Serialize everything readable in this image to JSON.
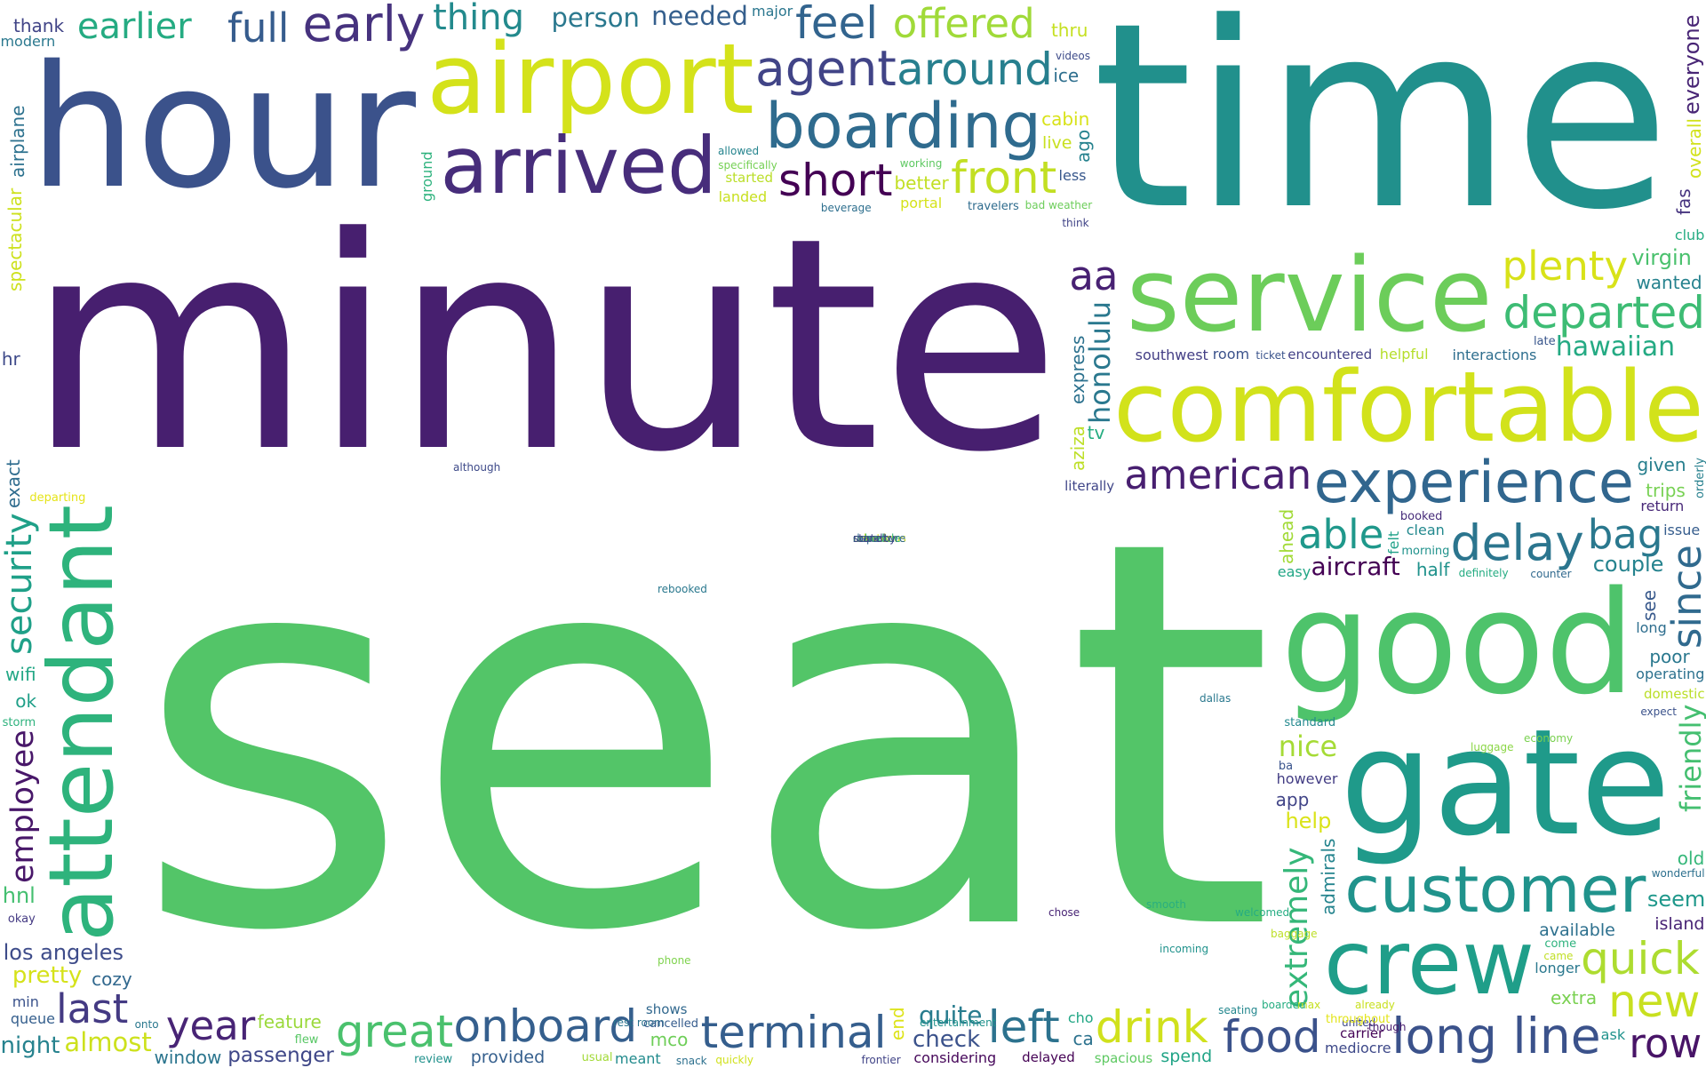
{
  "words": [
    {
      "text": "seat",
      "color": "#53c568"
    },
    {
      "text": "minute",
      "color": "#471f6f"
    },
    {
      "text": "time",
      "color": "#21908c"
    },
    {
      "text": "hour",
      "color": "#3b528b"
    },
    {
      "text": "airport",
      "color": "#d4e21a"
    },
    {
      "text": "comfortable",
      "color": "#d2e21b"
    },
    {
      "text": "service",
      "color": "#6ccd5a"
    },
    {
      "text": "good",
      "color": "#4ec36b"
    },
    {
      "text": "gate",
      "color": "#1f9a8a"
    },
    {
      "text": "arrived",
      "color": "#472d7b"
    },
    {
      "text": "customer",
      "color": "#20938c"
    },
    {
      "text": "crew",
      "color": "#1f9e89"
    },
    {
      "text": "attendant",
      "color": "#2eb37c"
    },
    {
      "text": "boarding",
      "color": "#2f6b8e"
    },
    {
      "text": "experience",
      "color": "#31668e"
    },
    {
      "text": "agent",
      "color": "#414487"
    },
    {
      "text": "early",
      "color": "#46327e"
    },
    {
      "text": "feel",
      "color": "#32648e"
    },
    {
      "text": "short",
      "color": "#440154"
    },
    {
      "text": "front",
      "color": "#c2df23"
    },
    {
      "text": "around",
      "color": "#277f8e"
    },
    {
      "text": "plenty",
      "color": "#d8e219"
    },
    {
      "text": "departed",
      "color": "#3dbc74"
    },
    {
      "text": "delay",
      "color": "#2b758e"
    },
    {
      "text": "earlier",
      "color": "#25ab82"
    },
    {
      "text": "offered",
      "color": "#a0da39"
    },
    {
      "text": "onboard",
      "color": "#355f8d"
    },
    {
      "text": "terminal",
      "color": "#355e8d"
    },
    {
      "text": "long line",
      "color": "#3b528b"
    },
    {
      "text": "able",
      "color": "#1f988b"
    },
    {
      "text": "since",
      "color": "#306a8e"
    },
    {
      "text": "full",
      "color": "#365c8d"
    },
    {
      "text": "last",
      "color": "#443a83"
    },
    {
      "text": "year",
      "color": "#482475"
    },
    {
      "text": "aa",
      "color": "#482173"
    },
    {
      "text": "left",
      "color": "#2c728e"
    },
    {
      "text": "quick",
      "color": "#addc30"
    },
    {
      "text": "drink",
      "color": "#d0e11c"
    },
    {
      "text": "new",
      "color": "#c8e020"
    },
    {
      "text": "great",
      "color": "#4ac16d"
    },
    {
      "text": "bag",
      "color": "#2a788e"
    },
    {
      "text": "food",
      "color": "#3b528b"
    },
    {
      "text": "security",
      "color": "#1fa088"
    },
    {
      "text": "almost",
      "color": "#cde11d"
    },
    {
      "text": "american",
      "color": "#481f70"
    },
    {
      "text": "person",
      "color": "#2a788e"
    },
    {
      "text": "row",
      "color": "#481467"
    },
    {
      "text": "needed",
      "color": "#355f8d"
    },
    {
      "text": "hawaiian",
      "color": "#24aa83"
    },
    {
      "text": "luggage",
      "color": "#8bd646"
    },
    {
      "text": "aircraft",
      "color": "#440154"
    },
    {
      "text": "los angeles",
      "color": "#3e4c8a"
    },
    {
      "text": "pretty",
      "color": "#d5e21a"
    },
    {
      "text": "nice",
      "color": "#a5db36"
    },
    {
      "text": "employee",
      "color": "#481769"
    },
    {
      "text": "honolulu",
      "color": "#2a788e"
    },
    {
      "text": "extremely",
      "color": "#35b779"
    },
    {
      "text": "friendly",
      "color": "#44bf70"
    },
    {
      "text": "quite",
      "color": "#287c8e"
    },
    {
      "text": "thing",
      "color": "#238a8d"
    },
    {
      "text": "check",
      "color": "#3b528b"
    },
    {
      "text": "night",
      "color": "#26828e"
    },
    {
      "text": "passenger",
      "color": "#3f4788"
    },
    {
      "text": "rest room",
      "color": "#2b748e"
    },
    {
      "text": "entertainment",
      "color": "#20928c"
    },
    {
      "text": "united",
      "color": "#3e4989"
    },
    {
      "text": "bad weather",
      "color": "#6ccd5a"
    },
    {
      "text": "interactions",
      "color": "#2e6e8e"
    },
    {
      "text": "thank",
      "color": "#414487"
    },
    {
      "text": "landed",
      "color": "#c8e020"
    },
    {
      "text": "modern",
      "color": "#2a788e"
    },
    {
      "text": "provided",
      "color": "#355f8d"
    },
    {
      "text": "encountered",
      "color": "#424086"
    },
    {
      "text": "southwest",
      "color": "#433e85"
    },
    {
      "text": "cabin",
      "color": "#d8e219"
    },
    {
      "text": "throughout",
      "color": "#e2e418"
    },
    {
      "text": "available",
      "color": "#2d708e"
    },
    {
      "text": "however",
      "color": "#433d84"
    },
    {
      "text": "specifically",
      "color": "#75d054"
    },
    {
      "text": "delayed",
      "color": "#440154"
    },
    {
      "text": "started",
      "color": "#bade28"
    },
    {
      "text": "airplane",
      "color": "#2c718e"
    },
    {
      "text": "considering",
      "color": "#46075a"
    },
    {
      "text": "feature",
      "color": "#9bd93c"
    },
    {
      "text": "ago",
      "color": "#26828e"
    },
    {
      "text": "given",
      "color": "#277f8e"
    },
    {
      "text": "virgin",
      "color": "#4ac16d"
    },
    {
      "text": "wanted",
      "color": "#26828e"
    },
    {
      "text": "mco",
      "color": "#6ece58"
    },
    {
      "text": "departing",
      "color": "#e5e419"
    },
    {
      "text": "better",
      "color": "#c2df23"
    },
    {
      "text": "express",
      "color": "#2c718e"
    },
    {
      "text": "couple",
      "color": "#25838e"
    },
    {
      "text": "definitely",
      "color": "#25ac82"
    },
    {
      "text": "spacious",
      "color": "#5ec962"
    },
    {
      "text": "mediocre",
      "color": "#3e4989"
    },
    {
      "text": "aziza",
      "color": "#bddf26"
    },
    {
      "text": "trips",
      "color": "#77d153"
    },
    {
      "text": "return",
      "color": "#482878"
    },
    {
      "text": "window",
      "color": "#2b758e"
    },
    {
      "text": "meant",
      "color": "#228b8d"
    },
    {
      "text": "poor",
      "color": "#2a788e"
    },
    {
      "text": "thru",
      "color": "#c5e021"
    },
    {
      "text": "allowed",
      "color": "#25848e"
    },
    {
      "text": "portal",
      "color": "#d5e21a"
    },
    {
      "text": "island",
      "color": "#482475"
    },
    {
      "text": "hr",
      "color": "#3e4a89"
    },
    {
      "text": "cozy",
      "color": "#31688e"
    },
    {
      "text": "overall",
      "color": "#d2e21b"
    },
    {
      "text": "major",
      "color": "#2a768e"
    },
    {
      "text": "operating",
      "color": "#2c718e"
    },
    {
      "text": "half",
      "color": "#20928c"
    },
    {
      "text": "queue",
      "color": "#355f8d"
    },
    {
      "text": "extra",
      "color": "#7ad151"
    },
    {
      "text": "clean",
      "color": "#23898e"
    },
    {
      "text": "ahead",
      "color": "#a2da37"
    },
    {
      "text": "everyone",
      "color": "#482575"
    },
    {
      "text": "tv",
      "color": "#26ad81"
    },
    {
      "text": "help",
      "color": "#dae319"
    },
    {
      "text": "spend",
      "color": "#20a486"
    },
    {
      "text": "wonderful",
      "color": "#2d708e"
    },
    {
      "text": "ok",
      "color": "#1f9f88"
    },
    {
      "text": "domestic",
      "color": "#bade28"
    },
    {
      "text": "booked",
      "color": "#472c7a"
    },
    {
      "text": "admirals",
      "color": "#25848e"
    },
    {
      "text": "spectacular",
      "color": "#cde11d"
    },
    {
      "text": "literally",
      "color": "#404688"
    },
    {
      "text": "helpful",
      "color": "#b5de2b"
    },
    {
      "text": "although",
      "color": "#3e4a89"
    },
    {
      "text": "exact",
      "color": "#2f6c8e"
    },
    {
      "text": "cancelled",
      "color": "#365c8d"
    },
    {
      "text": "travelers",
      "color": "#2f6c8e"
    },
    {
      "text": "counter",
      "color": "#30698e"
    },
    {
      "text": "seating",
      "color": "#24878e"
    },
    {
      "text": "seem",
      "color": "#1f988b"
    },
    {
      "text": "app",
      "color": "#414487"
    },
    {
      "text": "morning",
      "color": "#20928c"
    },
    {
      "text": "see",
      "color": "#38598c"
    },
    {
      "text": "flew",
      "color": "#58c765"
    },
    {
      "text": "club",
      "color": "#25ac82"
    },
    {
      "text": "room",
      "color": "#3b528b"
    },
    {
      "text": "less",
      "color": "#38588c"
    },
    {
      "text": "fas",
      "color": "#46337f"
    },
    {
      "text": "ice",
      "color": "#2e6f8e"
    },
    {
      "text": "felt",
      "color": "#1fa188"
    },
    {
      "text": "carrier",
      "color": "#450457"
    },
    {
      "text": "working",
      "color": "#5ec962"
    },
    {
      "text": "issue",
      "color": "#365d8d"
    },
    {
      "text": "standard",
      "color": "#23898e"
    },
    {
      "text": "beverage",
      "color": "#2e6f8e"
    },
    {
      "text": "review",
      "color": "#21918c"
    },
    {
      "text": "rebooked",
      "color": "#2a788e"
    },
    {
      "text": "wifi",
      "color": "#22a785"
    },
    {
      "text": "shows",
      "color": "#31688e"
    },
    {
      "text": "hnl",
      "color": "#44bf70"
    },
    {
      "text": "live",
      "color": "#c8e020"
    },
    {
      "text": "economy",
      "color": "#7ad151"
    },
    {
      "text": "ba",
      "color": "#3a548c"
    },
    {
      "text": "dallas",
      "color": "#2a788e"
    },
    {
      "text": "onto",
      "color": "#2a788e"
    },
    {
      "text": "ticket",
      "color": "#3a548c"
    },
    {
      "text": "videos",
      "color": "#3e4c8a"
    },
    {
      "text": "ask",
      "color": "#20928c"
    },
    {
      "text": "snack",
      "color": "#2d708e"
    },
    {
      "text": "orderly",
      "color": "#27808e"
    },
    {
      "text": "end",
      "color": "#dde318"
    },
    {
      "text": "think",
      "color": "#414487"
    },
    {
      "text": "cho",
      "color": "#22a785"
    },
    {
      "text": "storm",
      "color": "#2db27d"
    },
    {
      "text": "easy",
      "color": "#21a685"
    },
    {
      "text": "welcomed",
      "color": "#25ac82"
    },
    {
      "text": "smooth",
      "color": "#29af7f"
    },
    {
      "text": "baggage",
      "color": "#bddf26"
    },
    {
      "text": "chose",
      "color": "#482475"
    },
    {
      "text": "phone",
      "color": "#7fd34e"
    },
    {
      "text": "longer",
      "color": "#2a788e"
    },
    {
      "text": "old",
      "color": "#35b779"
    },
    {
      "text": "frontier",
      "color": "#414487"
    },
    {
      "text": "okay",
      "color": "#443a83"
    },
    {
      "text": "long",
      "color": "#2e6e8e"
    },
    {
      "text": "ca",
      "color": "#2c728e"
    },
    {
      "text": "quickly",
      "color": "#d0e11c"
    },
    {
      "text": "came",
      "color": "#c0df25"
    },
    {
      "text": "usual",
      "color": "#a2da37"
    },
    {
      "text": "incoming",
      "color": "#20928c"
    },
    {
      "text": "min",
      "color": "#3b528b"
    },
    {
      "text": "max",
      "color": "#c5e021"
    },
    {
      "text": "boarded",
      "color": "#26ad81"
    },
    {
      "text": "already",
      "color": "#c8e020"
    },
    {
      "text": "come",
      "color": "#2db27d"
    },
    {
      "text": "ground",
      "color": "#2db27d"
    },
    {
      "text": "expect",
      "color": "#3b528b"
    },
    {
      "text": "though",
      "color": "#481c6e"
    },
    {
      "text": "late",
      "color": "#39568c"
    },
    {
      "text": "courteous",
      "color": "#d8e219"
    },
    {
      "text": "rebook",
      "color": "#dde318"
    },
    {
      "text": "route",
      "color": "#3e4989"
    },
    {
      "text": "schedule",
      "color": "#37b878"
    },
    {
      "text": "departure",
      "color": "#31688e"
    },
    {
      "text": "standby",
      "color": "#414487"
    }
  ]
}
